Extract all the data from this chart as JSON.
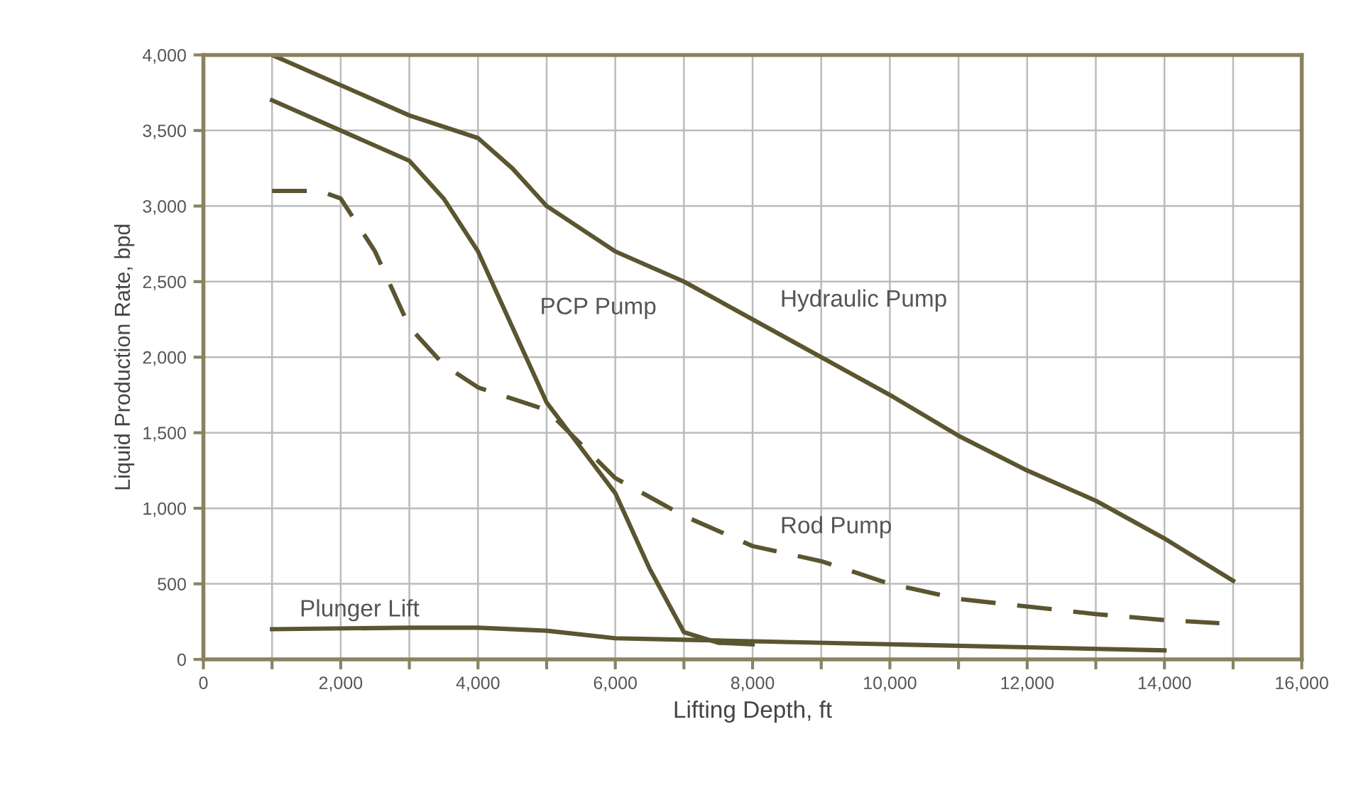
{
  "chart_data": {
    "type": "line",
    "xlabel": "Lifting Depth, ft",
    "ylabel": "Liquid Production Rate, bpd",
    "xlim": [
      0,
      16000
    ],
    "ylim": [
      0,
      4000
    ],
    "xticks": [
      0,
      {
        "value": 1000,
        "label": null
      },
      {
        "value": 2000,
        "label": "2,000"
      },
      {
        "value": 3000,
        "label": null
      },
      {
        "value": 4000,
        "label": "4,000"
      },
      {
        "value": 5000,
        "label": null
      },
      {
        "value": 6000,
        "label": "6,000"
      },
      {
        "value": 7000,
        "label": null
      },
      {
        "value": 8000,
        "label": "8,000"
      },
      {
        "value": 9000,
        "label": null
      },
      {
        "value": 10000,
        "label": "10,000"
      },
      {
        "value": 11000,
        "label": null
      },
      {
        "value": 12000,
        "label": "12,000"
      },
      {
        "value": 13000,
        "label": null
      },
      {
        "value": 14000,
        "label": "14,000"
      },
      {
        "value": 15000,
        "label": null
      },
      {
        "value": 16000,
        "label": "16,000"
      }
    ],
    "yticks": [
      0,
      500,
      {
        "value": 1000,
        "label": "1,000"
      },
      {
        "value": 1500,
        "label": "1,500"
      },
      {
        "value": 2000,
        "label": "2,000"
      },
      {
        "value": 2500,
        "label": "2,500"
      },
      {
        "value": 3000,
        "label": "3,000"
      },
      {
        "value": 3500,
        "label": "3,500"
      },
      {
        "value": 4000,
        "label": "4,000"
      }
    ],
    "grid": true,
    "marker": "none",
    "series": [
      {
        "color": "#5b5530",
        "line_style": "solid",
        "x": [
          1000,
          2000,
          3000,
          4000,
          4500,
          5000,
          6000,
          7000,
          8000,
          9000,
          10000,
          11000,
          12000,
          13000,
          14000,
          15000
        ],
        "values": [
          4000,
          3800,
          3600,
          3450,
          3250,
          3000,
          2700,
          2500,
          2250,
          2000,
          1750,
          1480,
          1250,
          1050,
          800,
          520
        ]
      },
      {
        "color": "#5b5530",
        "line_style": "solid",
        "x": [
          1000,
          2000,
          3000,
          3500,
          4000,
          4500,
          5000,
          5500,
          6000,
          6500,
          7000,
          7500,
          8000
        ],
        "values": [
          3700,
          3500,
          3300,
          3050,
          2700,
          2200,
          1700,
          1400,
          1100,
          600,
          180,
          110,
          100
        ]
      },
      {
        "color": "#5b5530",
        "line_style": "dashed",
        "x": [
          1000,
          1700,
          2000,
          2500,
          3000,
          3500,
          4000,
          5000,
          6000,
          7000,
          8000,
          9000,
          10000,
          11000,
          12000,
          13000,
          14000,
          14800
        ],
        "values": [
          3100,
          3100,
          3050,
          2700,
          2200,
          1950,
          1800,
          1650,
          1200,
          950,
          750,
          650,
          500,
          400,
          350,
          300,
          260,
          240
        ]
      },
      {
        "color": "#5b5530",
        "line_style": "solid",
        "x": [
          1000,
          3000,
          4000,
          5000,
          6000,
          7000,
          8000,
          10000,
          12000,
          14000
        ],
        "values": [
          200,
          210,
          210,
          190,
          140,
          130,
          120,
          100,
          80,
          60
        ]
      }
    ],
    "annotations": [
      {
        "text": "PCP Pump",
        "x": 4500,
        "y": 2200
      },
      {
        "text": "Hydraulic Pump",
        "x": 8000,
        "y": 2250
      },
      {
        "text": "Rod Pump",
        "x": 8000,
        "y": 750
      },
      {
        "text": "Plunger Lift",
        "x": 1000,
        "y": 200
      }
    ]
  }
}
